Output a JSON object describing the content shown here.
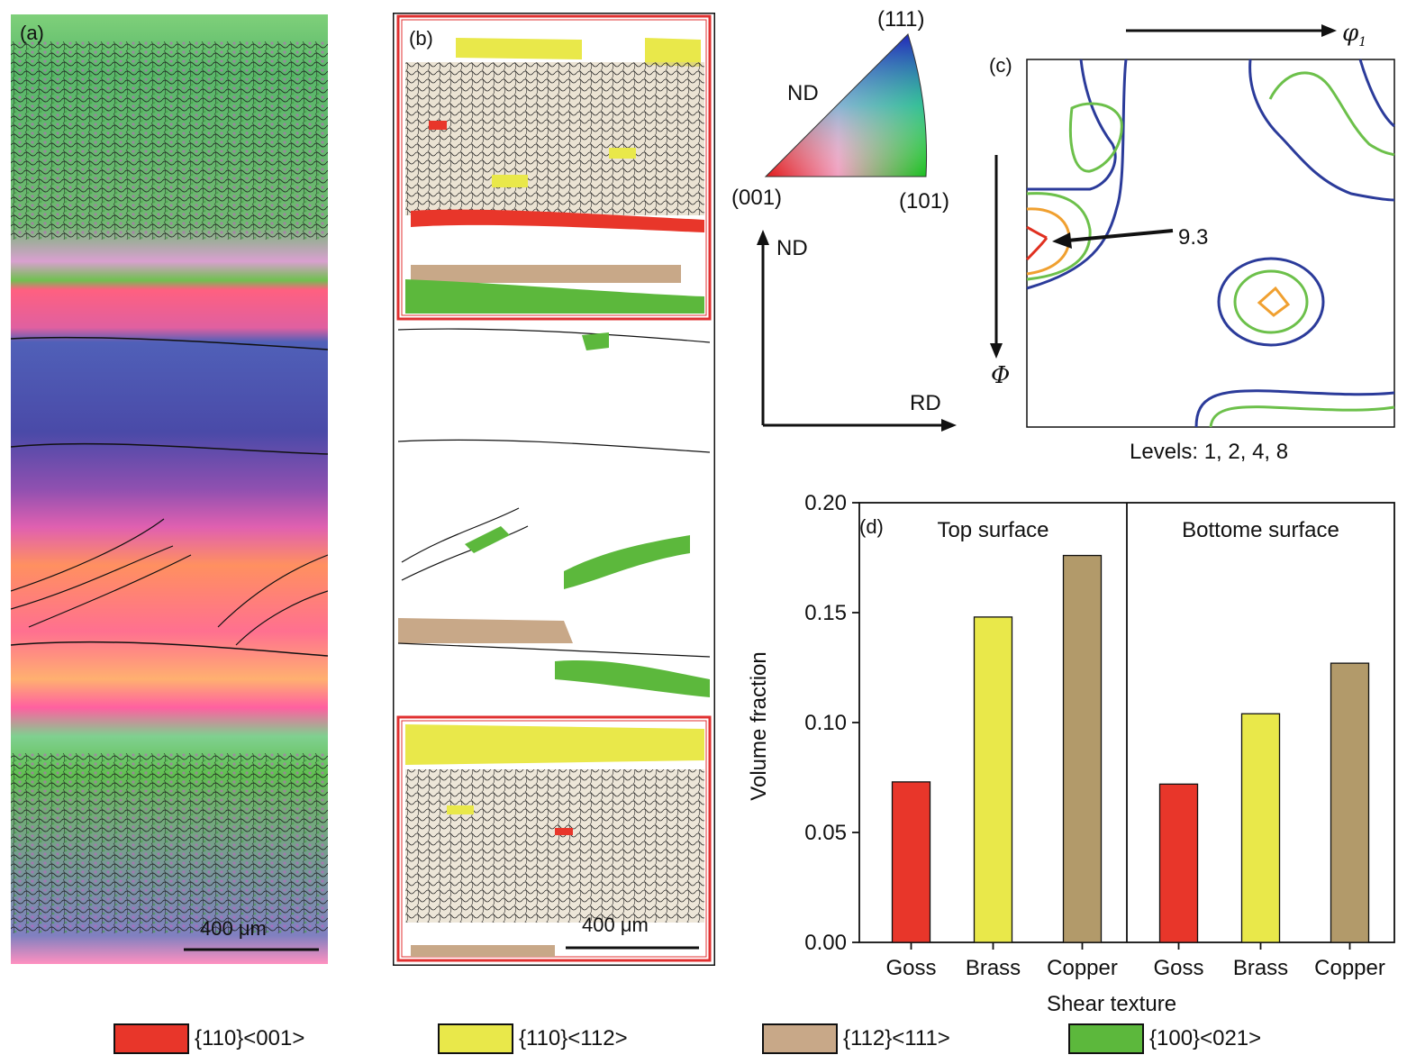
{
  "panel_a": {
    "label": "(a)",
    "scale_bar": "400 μm"
  },
  "panel_b": {
    "label": "(b)",
    "scale_bar": "400 μm"
  },
  "ipf_triangle": {
    "corner_111": "(111)",
    "corner_001": "(001)",
    "corner_101": "(101)",
    "direction": "ND"
  },
  "axes_indicator": {
    "vertical": "ND",
    "horizontal": "RD"
  },
  "panel_c": {
    "label": "(c)",
    "phi1": "φ",
    "phi1_sub": "1",
    "phi": "Φ",
    "peak_value": "9.3",
    "levels": "Levels: 1, 2, 4, 8"
  },
  "colors": {
    "goss": "#e8362a",
    "brass": "#e9e84a",
    "copper": "#b29a6a",
    "s_cube": "#5cb83c",
    "contour_1": "#2b3b9a",
    "contour_2": "#6cc04a",
    "contour_4": "#f0a030",
    "contour_8": "#e03020"
  },
  "legend": [
    {
      "label": "{110}<001>",
      "color": "#e8362a"
    },
    {
      "label": "{110}<112>",
      "color": "#e9e84a"
    },
    {
      "label": "{112}<111>",
      "color": "#c8a888"
    },
    {
      "label": "{100}<021>",
      "color": "#5cb83c"
    }
  ],
  "chart_data": {
    "type": "bar",
    "label": "(d)",
    "ylabel": "Volume fraction",
    "xlabel": "Shear texture",
    "ylim": [
      0,
      0.2
    ],
    "yticks": [
      "0.00",
      "0.05",
      "0.10",
      "0.15",
      "0.20"
    ],
    "groups": [
      {
        "name": "Top surface",
        "categories": [
          "Goss",
          "Brass",
          "Copper"
        ],
        "values": [
          0.073,
          0.148,
          0.176
        ]
      },
      {
        "name": "Bottome surface",
        "categories": [
          "Goss",
          "Brass",
          "Copper"
        ],
        "values": [
          0.072,
          0.104,
          0.127
        ]
      }
    ],
    "bar_colors": [
      "#e8362a",
      "#e9e84a",
      "#b29a6a"
    ]
  }
}
